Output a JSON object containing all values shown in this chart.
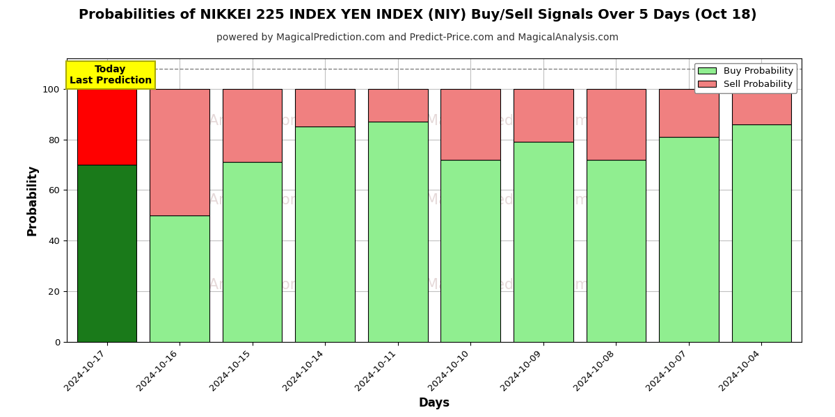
{
  "title": "Probabilities of NIKKEI 225 INDEX YEN INDEX (NIY) Buy/Sell Signals Over 5 Days (Oct 18)",
  "subtitle": "powered by MagicalPrediction.com and Predict-Price.com and MagicalAnalysis.com",
  "xlabel": "Days",
  "ylabel": "Probability",
  "dates": [
    "2024-10-17",
    "2024-10-16",
    "2024-10-15",
    "2024-10-14",
    "2024-10-11",
    "2024-10-10",
    "2024-10-09",
    "2024-10-08",
    "2024-10-07",
    "2024-10-04"
  ],
  "buy_values": [
    70,
    50,
    71,
    85,
    87,
    72,
    79,
    72,
    81,
    86
  ],
  "sell_values": [
    30,
    50,
    29,
    15,
    13,
    28,
    21,
    28,
    19,
    14
  ],
  "today_buy_color": "#1a7a1a",
  "today_sell_color": "#ff0000",
  "buy_color": "#90ee90",
  "sell_color": "#f08080",
  "today_index": 0,
  "today_label_bg": "#ffff00",
  "today_label_text1": "Today",
  "today_label_text2": "Last Prediction",
  "ylim": [
    0,
    112
  ],
  "dashed_line_y": 108,
  "legend_buy": "Buy Probability",
  "legend_sell": "Sell Probability",
  "background_color": "#ffffff",
  "grid_color": "#c0c0c0",
  "bar_edge_color": "#000000",
  "title_fontsize": 14,
  "subtitle_fontsize": 10,
  "label_fontsize": 12,
  "tick_fontsize": 9.5
}
